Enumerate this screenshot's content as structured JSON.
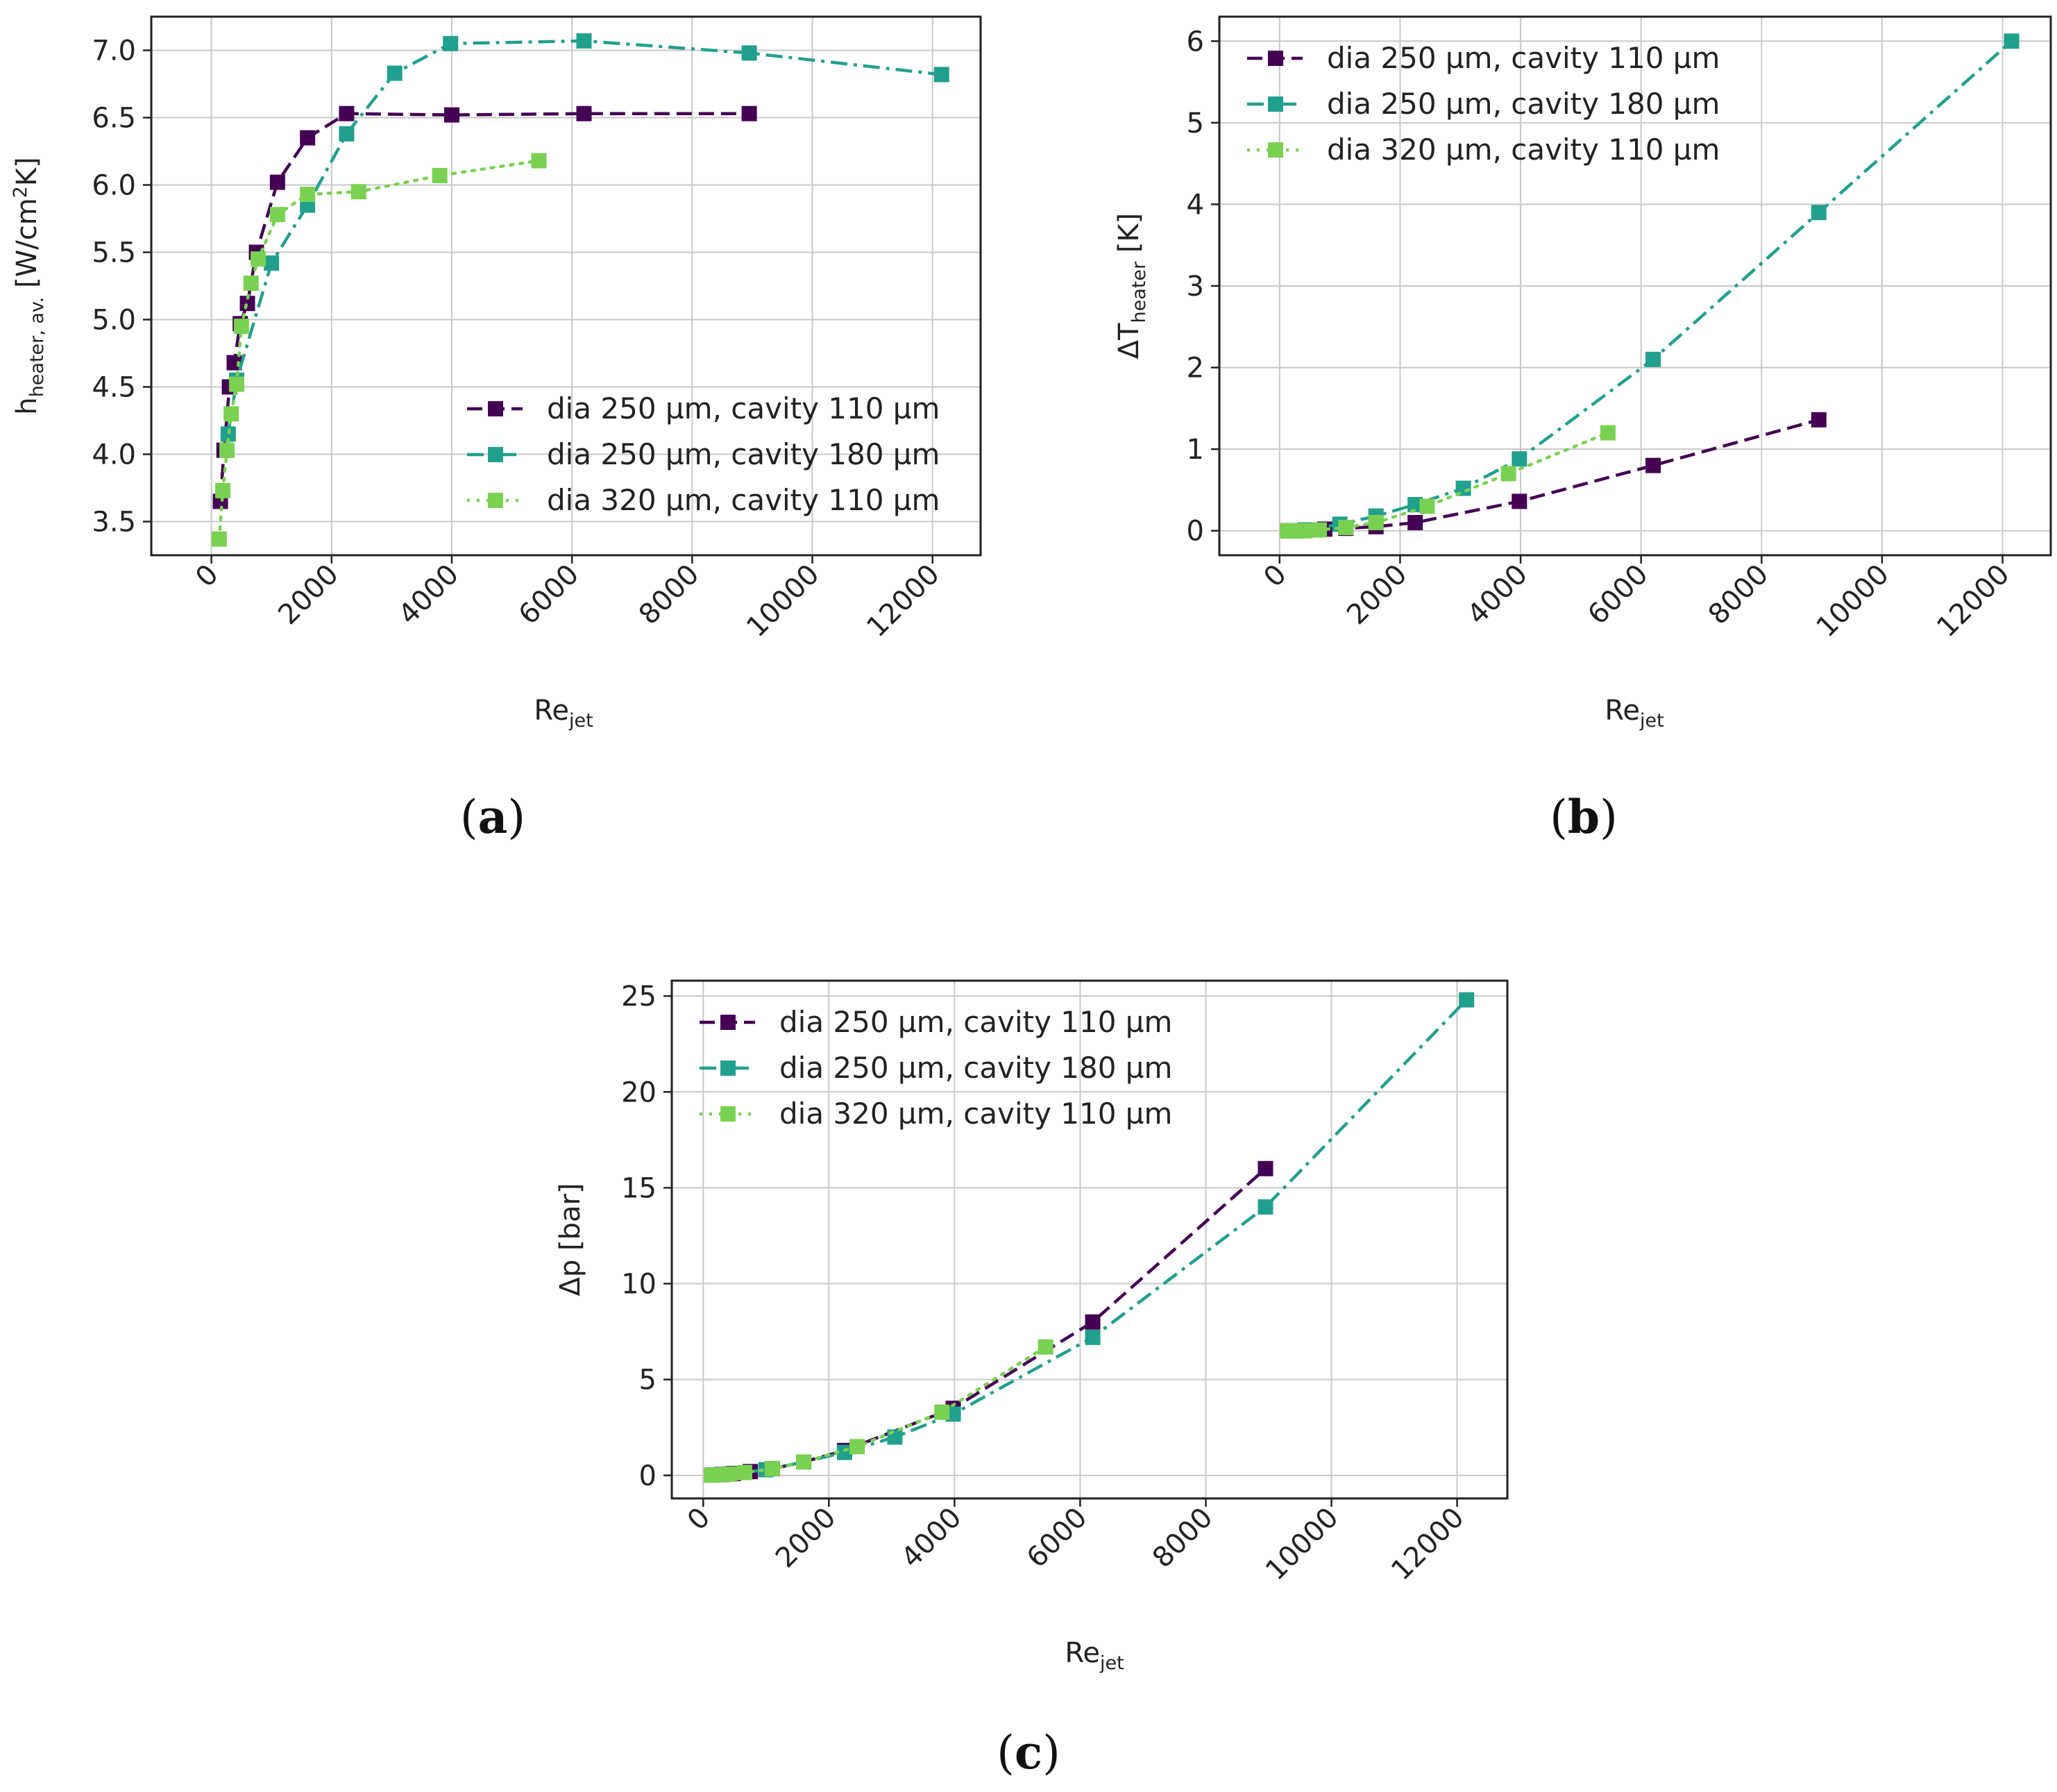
{
  "colors": {
    "series1": "#440154",
    "series2": "#21a08d",
    "series3": "#7ad151",
    "grid": "#c8c8c8",
    "axis": "#222222"
  },
  "chart_data": [
    {
      "type": "line",
      "panel": "(a)",
      "panel_letter": "a",
      "xlabel_main": "Re",
      "xlabel_sub": "jet",
      "ylabel_main": "h",
      "ylabel_sub": "heater, av.",
      "ylabel_unit_pre": " [W/cm",
      "ylabel_unit_sup": "2",
      "ylabel_unit_post": "K]",
      "xlim": [
        -1000,
        12800
      ],
      "ylim": [
        3.25,
        7.25
      ],
      "xticks": [
        0,
        2000,
        4000,
        6000,
        8000,
        10000,
        12000
      ],
      "yticks": [
        3.5,
        4.0,
        4.5,
        5.0,
        5.5,
        6.0,
        6.5,
        7.0
      ],
      "ytick_labels": [
        "3.5",
        "4.0",
        "4.5",
        "5.0",
        "5.5",
        "6.0",
        "6.5",
        "7.0"
      ],
      "legend_position": "lower-right",
      "series": [
        {
          "name": "dia 250 µm, cavity 110 µm",
          "style": "dashed",
          "x": [
            150,
            210,
            300,
            380,
            480,
            600,
            750,
            1100,
            1600,
            2250,
            4000,
            6200,
            8950
          ],
          "y": [
            3.65,
            4.03,
            4.5,
            4.68,
            4.97,
            5.12,
            5.5,
            6.02,
            6.35,
            6.53,
            6.52,
            6.53,
            6.53
          ]
        },
        {
          "name": "dia 250 µm, cavity 180 µm",
          "style": "dashdot",
          "x": [
            280,
            420,
            1000,
            1600,
            2250,
            3050,
            3980,
            6200,
            8950,
            12150
          ],
          "y": [
            4.15,
            4.55,
            5.42,
            5.85,
            6.38,
            6.83,
            7.05,
            7.07,
            6.98,
            6.82
          ]
        },
        {
          "name": "dia 320 µm, cavity 110 µm",
          "style": "dotted",
          "x": [
            130,
            190,
            260,
            330,
            420,
            500,
            660,
            780,
            1100,
            1600,
            2450,
            3800,
            5450
          ],
          "y": [
            3.37,
            3.73,
            4.03,
            4.3,
            4.52,
            4.95,
            5.27,
            5.45,
            5.78,
            5.93,
            5.95,
            6.07,
            6.18
          ]
        }
      ]
    },
    {
      "type": "line",
      "panel": "(b)",
      "panel_letter": "b",
      "xlabel_main": "Re",
      "xlabel_sub": "jet",
      "ylabel_main": "ΔT",
      "ylabel_sub": "heater",
      "ylabel_unit_pre": " [K]",
      "ylabel_unit_sup": "",
      "ylabel_unit_post": "",
      "xlim": [
        -1000,
        12800
      ],
      "ylim": [
        -0.3,
        6.3
      ],
      "xticks": [
        0,
        2000,
        4000,
        6000,
        8000,
        10000,
        12000
      ],
      "yticks": [
        0,
        1,
        2,
        3,
        4,
        5,
        6
      ],
      "ytick_labels": [
        "0",
        "1",
        "2",
        "3",
        "4",
        "5",
        "6"
      ],
      "legend_position": "upper-left",
      "series": [
        {
          "name": "dia 250 µm, cavity 110 µm",
          "style": "dashed",
          "x": [
            150,
            300,
            480,
            750,
            1100,
            1600,
            2250,
            3980,
            6200,
            8950
          ],
          "y": [
            0.0,
            0.0,
            0.01,
            0.02,
            0.03,
            0.05,
            0.1,
            0.36,
            0.8,
            1.36
          ]
        },
        {
          "name": "dia 250 µm, cavity 180 µm",
          "style": "dashdot",
          "x": [
            280,
            420,
            1000,
            1600,
            2250,
            3050,
            3980,
            6200,
            8950,
            12150
          ],
          "y": [
            0.0,
            0.01,
            0.08,
            0.18,
            0.32,
            0.52,
            0.88,
            2.1,
            3.9,
            6.0
          ]
        },
        {
          "name": "dia 320 µm, cavity 110 µm",
          "style": "dotted",
          "x": [
            130,
            260,
            420,
            660,
            1100,
            1600,
            2450,
            3800,
            5450
          ],
          "y": [
            0.0,
            0.0,
            0.0,
            0.01,
            0.04,
            0.1,
            0.3,
            0.7,
            1.2
          ]
        }
      ]
    },
    {
      "type": "line",
      "panel": "(c)",
      "panel_letter": "c",
      "xlabel_main": "Re",
      "xlabel_sub": "jet",
      "ylabel_main": "Δp [bar]",
      "ylabel_sub": "",
      "ylabel_unit_pre": "",
      "ylabel_unit_sup": "",
      "ylabel_unit_post": "",
      "xlim": [
        -500,
        12800
      ],
      "ylim": [
        -1.2,
        25.8
      ],
      "xticks": [
        0,
        2000,
        4000,
        6000,
        8000,
        10000,
        12000
      ],
      "yticks": [
        0,
        5,
        10,
        15,
        20,
        25
      ],
      "ytick_labels": [
        "0",
        "5",
        "10",
        "15",
        "20",
        "25"
      ],
      "legend_position": "upper-left",
      "series": [
        {
          "name": "dia 250 µm, cavity 110 µm",
          "style": "dashed",
          "x": [
            150,
            300,
            480,
            750,
            1100,
            1600,
            2250,
            3980,
            6200,
            8950
          ],
          "y": [
            0.02,
            0.05,
            0.1,
            0.2,
            0.35,
            0.7,
            1.3,
            3.5,
            8.0,
            16.0
          ]
        },
        {
          "name": "dia 250 µm, cavity 180 µm",
          "style": "dashdot",
          "x": [
            280,
            420,
            1000,
            1600,
            2250,
            3050,
            3980,
            6200,
            8950,
            12150
          ],
          "y": [
            0.04,
            0.08,
            0.3,
            0.7,
            1.2,
            2.0,
            3.2,
            7.2,
            14.0,
            24.8
          ]
        },
        {
          "name": "dia 320 µm, cavity 110 µm",
          "style": "dotted",
          "x": [
            130,
            260,
            420,
            660,
            1100,
            1600,
            2450,
            3800,
            5450
          ],
          "y": [
            0.01,
            0.03,
            0.06,
            0.15,
            0.35,
            0.7,
            1.5,
            3.3,
            6.7
          ]
        }
      ]
    }
  ]
}
